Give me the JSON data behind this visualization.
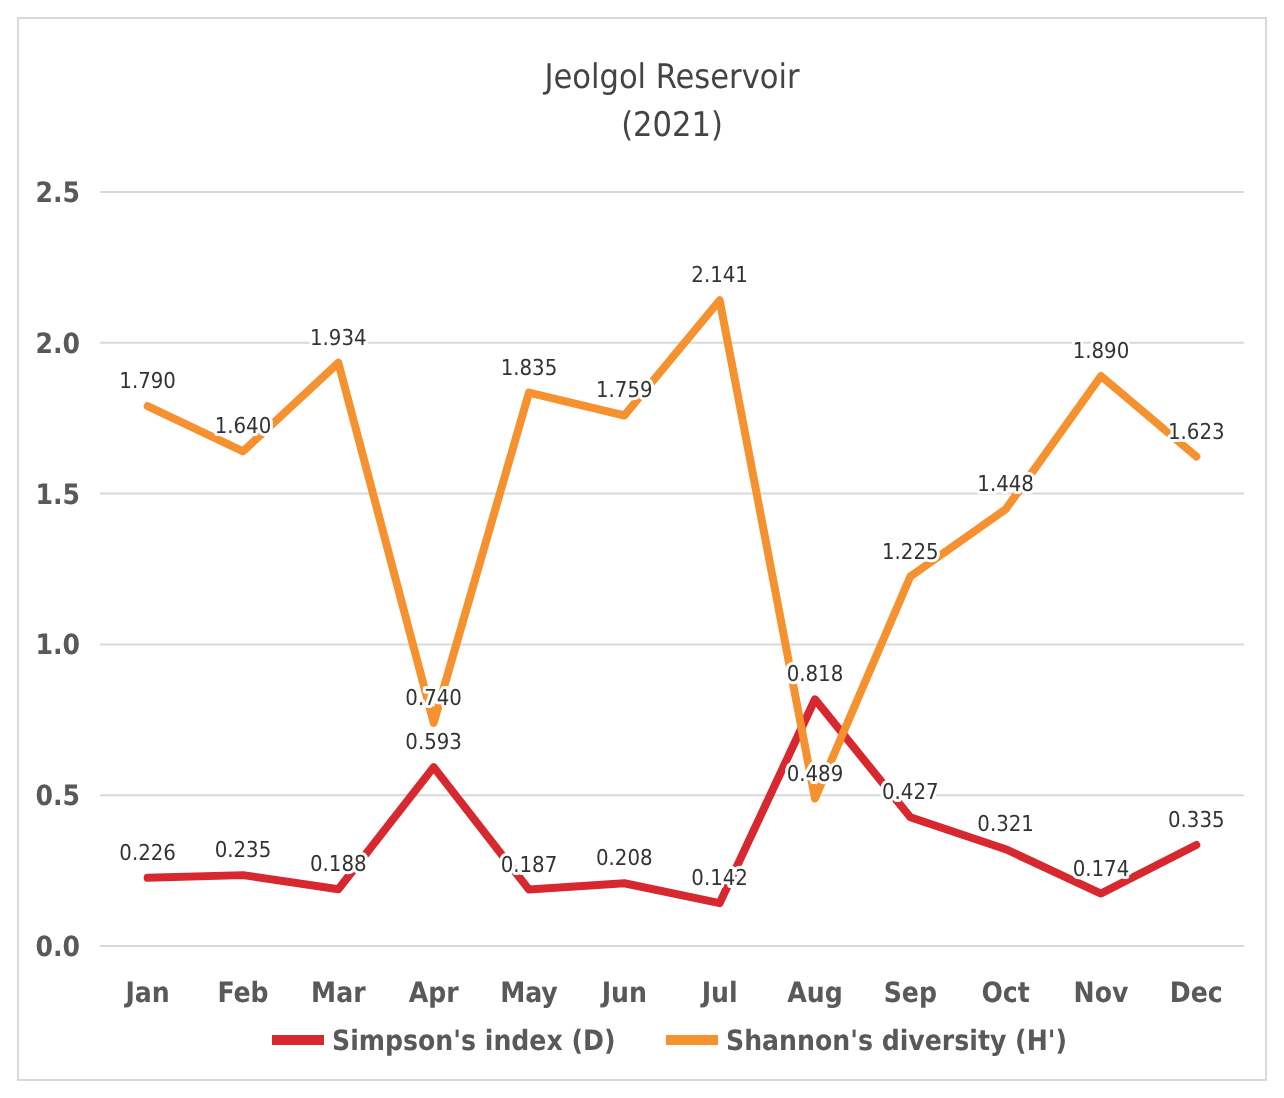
{
  "chart_data": {
    "type": "line",
    "title": "Jeolgol Reservoir",
    "subtitle": "(2021)",
    "categories": [
      "Jan",
      "Feb",
      "Mar",
      "Apr",
      "May",
      "Jun",
      "Jul",
      "Aug",
      "Sep",
      "Oct",
      "Nov",
      "Dec"
    ],
    "series": [
      {
        "name": "Simpson's index (D)",
        "color": "#d7282f",
        "values": [
          0.226,
          0.235,
          0.188,
          0.593,
          0.187,
          0.208,
          0.142,
          0.818,
          0.427,
          0.321,
          0.174,
          0.335
        ],
        "value_labels": [
          "0.226",
          "0.235",
          "0.188",
          "0.593",
          "0.187",
          "0.208",
          "0.142",
          "0.818",
          "0.427",
          "0.321",
          "0.174",
          "0.335"
        ]
      },
      {
        "name": "Shannon's diversity (H')",
        "color": "#f5922f",
        "values": [
          1.79,
          1.64,
          1.934,
          0.74,
          1.835,
          1.759,
          2.141,
          0.489,
          1.225,
          1.448,
          1.89,
          1.623
        ],
        "value_labels": [
          "1.790",
          "1.640",
          "1.934",
          "0.740",
          "1.835",
          "1.759",
          "2.141",
          "0.489",
          "1.225",
          "1.448",
          "1.890",
          "1.623"
        ]
      }
    ],
    "ylim": [
      0,
      2.5
    ],
    "yticks": [
      {
        "value": 0,
        "label": "0.0"
      },
      {
        "value": 0.5,
        "label": "0.5"
      },
      {
        "value": 1,
        "label": "1.0"
      },
      {
        "value": 1.5,
        "label": "1.5"
      },
      {
        "value": 2,
        "label": "2.0"
      },
      {
        "value": 2.5,
        "label": "2.5"
      }
    ],
    "grid": "y",
    "legend": "bottom",
    "marker": "none",
    "line_style": "solid"
  }
}
